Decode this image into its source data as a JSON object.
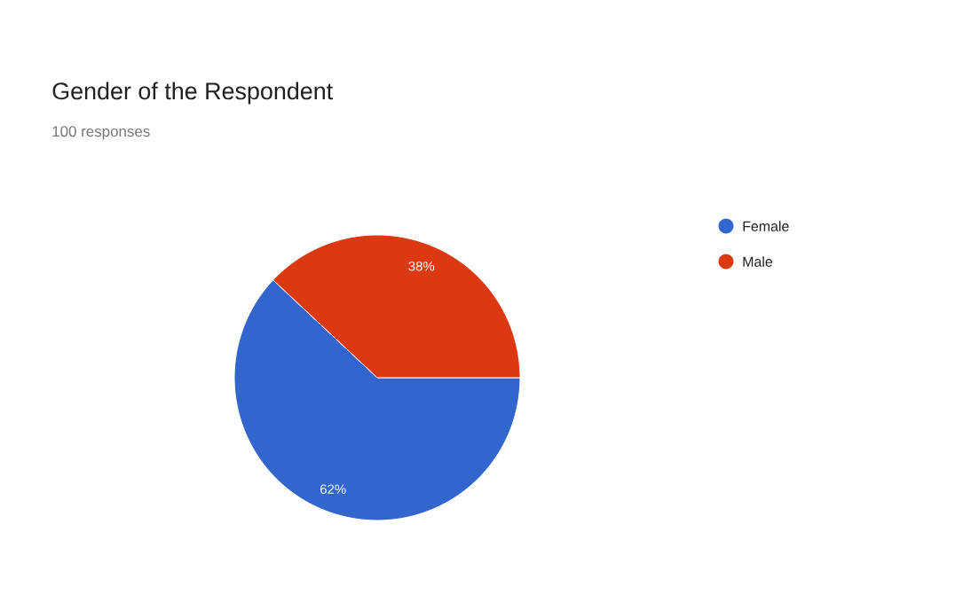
{
  "chart_data": {
    "type": "pie",
    "title": "Gender of the Respondent",
    "subtitle": "100 responses",
    "categories": [
      "Female",
      "Male"
    ],
    "values": [
      62,
      38
    ],
    "colors": [
      "#3366cc",
      "#dc3912"
    ],
    "value_labels": [
      "62%",
      "38%"
    ],
    "legend": "top right"
  }
}
